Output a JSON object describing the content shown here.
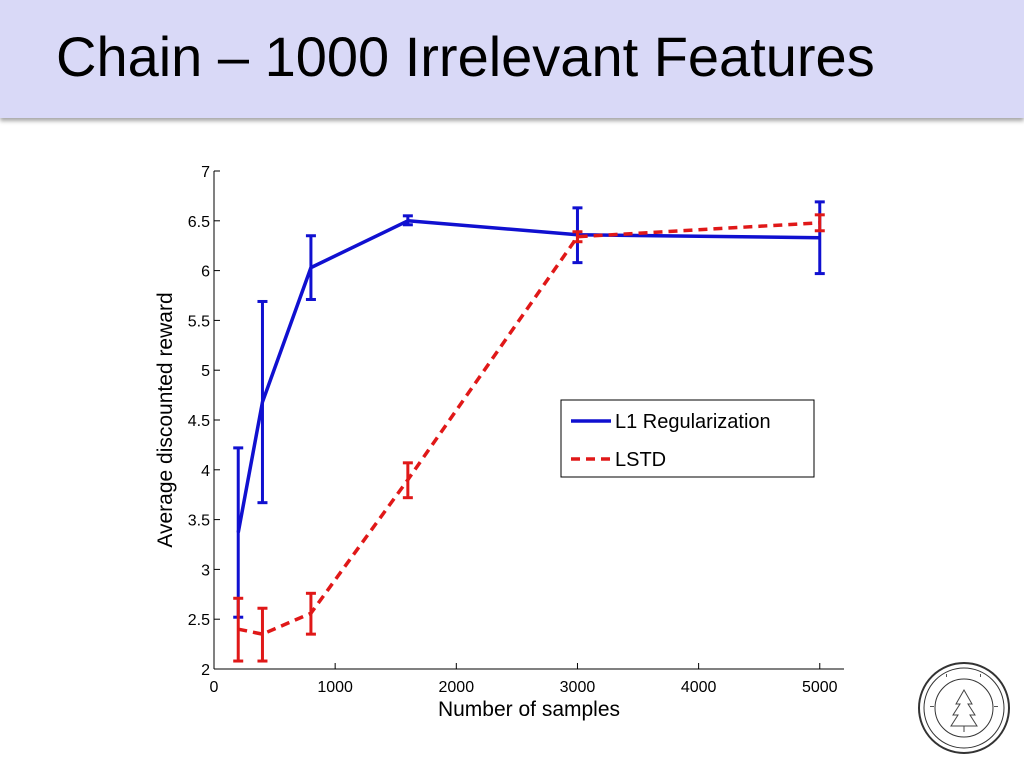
{
  "slide": {
    "title": "Chain – 1000 Irrelevant Features"
  },
  "chart_data": {
    "type": "line",
    "xlabel": "Number of samples",
    "ylabel": "Average discounted reward",
    "xlim": [
      0,
      5200
    ],
    "ylim": [
      2,
      7
    ],
    "xticks": [
      0,
      1000,
      2000,
      3000,
      4000,
      5000
    ],
    "yticks": [
      2,
      2.5,
      3,
      3.5,
      4,
      4.5,
      5,
      5.5,
      6,
      6.5,
      7
    ],
    "xtick_labels": [
      "0",
      "1000",
      "2000",
      "3000",
      "4000",
      "5000"
    ],
    "ytick_labels": [
      "2",
      "2.5",
      "3",
      "3.5",
      "4",
      "4.5",
      "5",
      "5.5",
      "6",
      "6.5",
      "7"
    ],
    "grid": false,
    "legend_position": "right-middle",
    "series": [
      {
        "name": "L1 Regularization",
        "color": "#1010d0",
        "style": "solid",
        "x": [
          200,
          400,
          800,
          1600,
          3000,
          5000
        ],
        "y": [
          3.37,
          4.68,
          6.03,
          6.5,
          6.36,
          6.33
        ],
        "err_low": [
          2.52,
          3.67,
          5.71,
          6.46,
          6.08,
          5.97
        ],
        "err_high": [
          4.22,
          5.69,
          6.35,
          6.55,
          6.63,
          6.69
        ]
      },
      {
        "name": "LSTD",
        "color": "#e01818",
        "style": "dashed",
        "x": [
          200,
          400,
          800,
          1600,
          3000,
          5000
        ],
        "y": [
          2.4,
          2.35,
          2.56,
          3.9,
          6.34,
          6.48
        ],
        "err_low": [
          2.08,
          2.08,
          2.35,
          3.72,
          6.29,
          6.4
        ],
        "err_high": [
          2.71,
          2.61,
          2.76,
          4.07,
          6.39,
          6.56
        ]
      }
    ]
  }
}
